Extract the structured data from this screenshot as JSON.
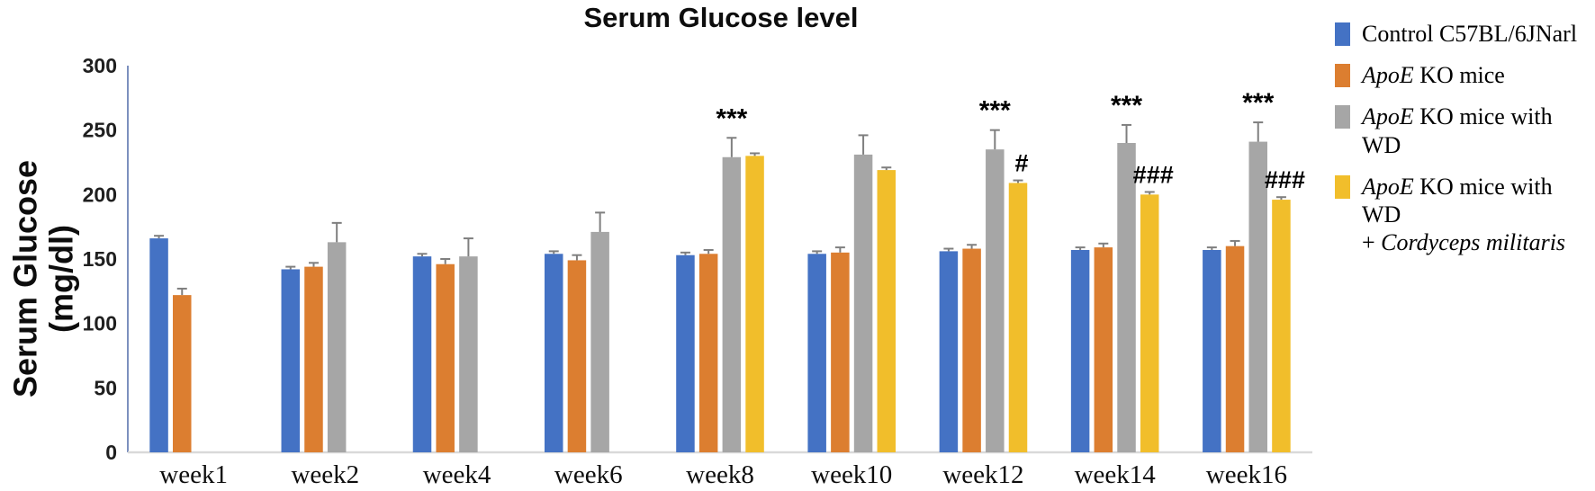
{
  "chart_data": {
    "type": "bar",
    "title": "Serum Glucose level",
    "ylabel_line1": "Serum Glucose",
    "ylabel_line2": "(mg/dl)",
    "xlabel": "",
    "ylim": [
      0,
      300
    ],
    "yticks": [
      0,
      50,
      100,
      150,
      200,
      250,
      300
    ],
    "grid": false,
    "legend_position": "right",
    "categories": [
      "week1",
      "week2",
      "week4",
      "week6",
      "week8",
      "week10",
      "week12",
      "week14",
      "week16"
    ],
    "series": [
      {
        "name": "Control C57BL/6JNarl",
        "color": "#4472C4",
        "values": [
          166,
          142,
          152,
          154,
          153,
          154,
          156,
          157,
          157
        ],
        "errors": [
          2,
          2,
          2,
          2,
          2,
          2,
          2,
          2,
          2
        ]
      },
      {
        "name": "ApoE KO mice",
        "color": "#DC7E30",
        "values": [
          122,
          144,
          146,
          149,
          154,
          155,
          158,
          159,
          160
        ],
        "errors": [
          5,
          3,
          4,
          4,
          3,
          4,
          3,
          3,
          4
        ]
      },
      {
        "name": "ApoE KO mice with WD",
        "color": "#A6A6A6",
        "values": [
          null,
          163,
          152,
          171,
          229,
          231,
          235,
          240,
          241
        ],
        "errors": [
          null,
          15,
          14,
          15,
          15,
          15,
          15,
          14,
          15
        ]
      },
      {
        "name": "ApoE KO mice with WD + Cordyceps militaris",
        "color": "#F1BE2B",
        "values": [
          null,
          null,
          null,
          null,
          230,
          219,
          209,
          200,
          196
        ],
        "errors": [
          null,
          null,
          null,
          null,
          2,
          2,
          2,
          2,
          2
        ]
      }
    ],
    "significance": {
      "above_wd_series": [
        "",
        "",
        "",
        "",
        "***",
        "",
        "***",
        "***",
        "***"
      ],
      "above_cordyceps_series": [
        "",
        "",
        "",
        "",
        "",
        "",
        "#",
        "###",
        "###"
      ]
    }
  },
  "legend": {
    "items": [
      {
        "id": "control",
        "color": "#4472C4",
        "lines": [
          [
            {
              "t": "Control C57BL/6JNarl",
              "i": false
            }
          ]
        ]
      },
      {
        "id": "apoe-ko",
        "color": "#DC7E30",
        "lines": [
          [
            {
              "t": "ApoE",
              "i": true
            },
            {
              "t": " KO mice",
              "i": false
            }
          ]
        ]
      },
      {
        "id": "apoe-ko-wd",
        "color": "#A6A6A6",
        "lines": [
          [
            {
              "t": "ApoE",
              "i": true
            },
            {
              "t": " KO mice with WD",
              "i": false
            }
          ]
        ]
      },
      {
        "id": "apoe-ko-wd-cordyceps",
        "color": "#F1BE2B",
        "lines": [
          [
            {
              "t": "ApoE",
              "i": true
            },
            {
              "t": " KO mice with WD",
              "i": false
            }
          ],
          [
            {
              "t": "+ ",
              "i": false
            },
            {
              "t": "Cordyceps militaris",
              "i": true
            }
          ]
        ]
      }
    ]
  },
  "colors": {
    "y_axis_line": "#7C90BE",
    "x_axis_line": "#D9D9D9",
    "error_bar": "#7F7F7F",
    "title_text": "#0D0D0D",
    "background": "#FFFFFF"
  }
}
